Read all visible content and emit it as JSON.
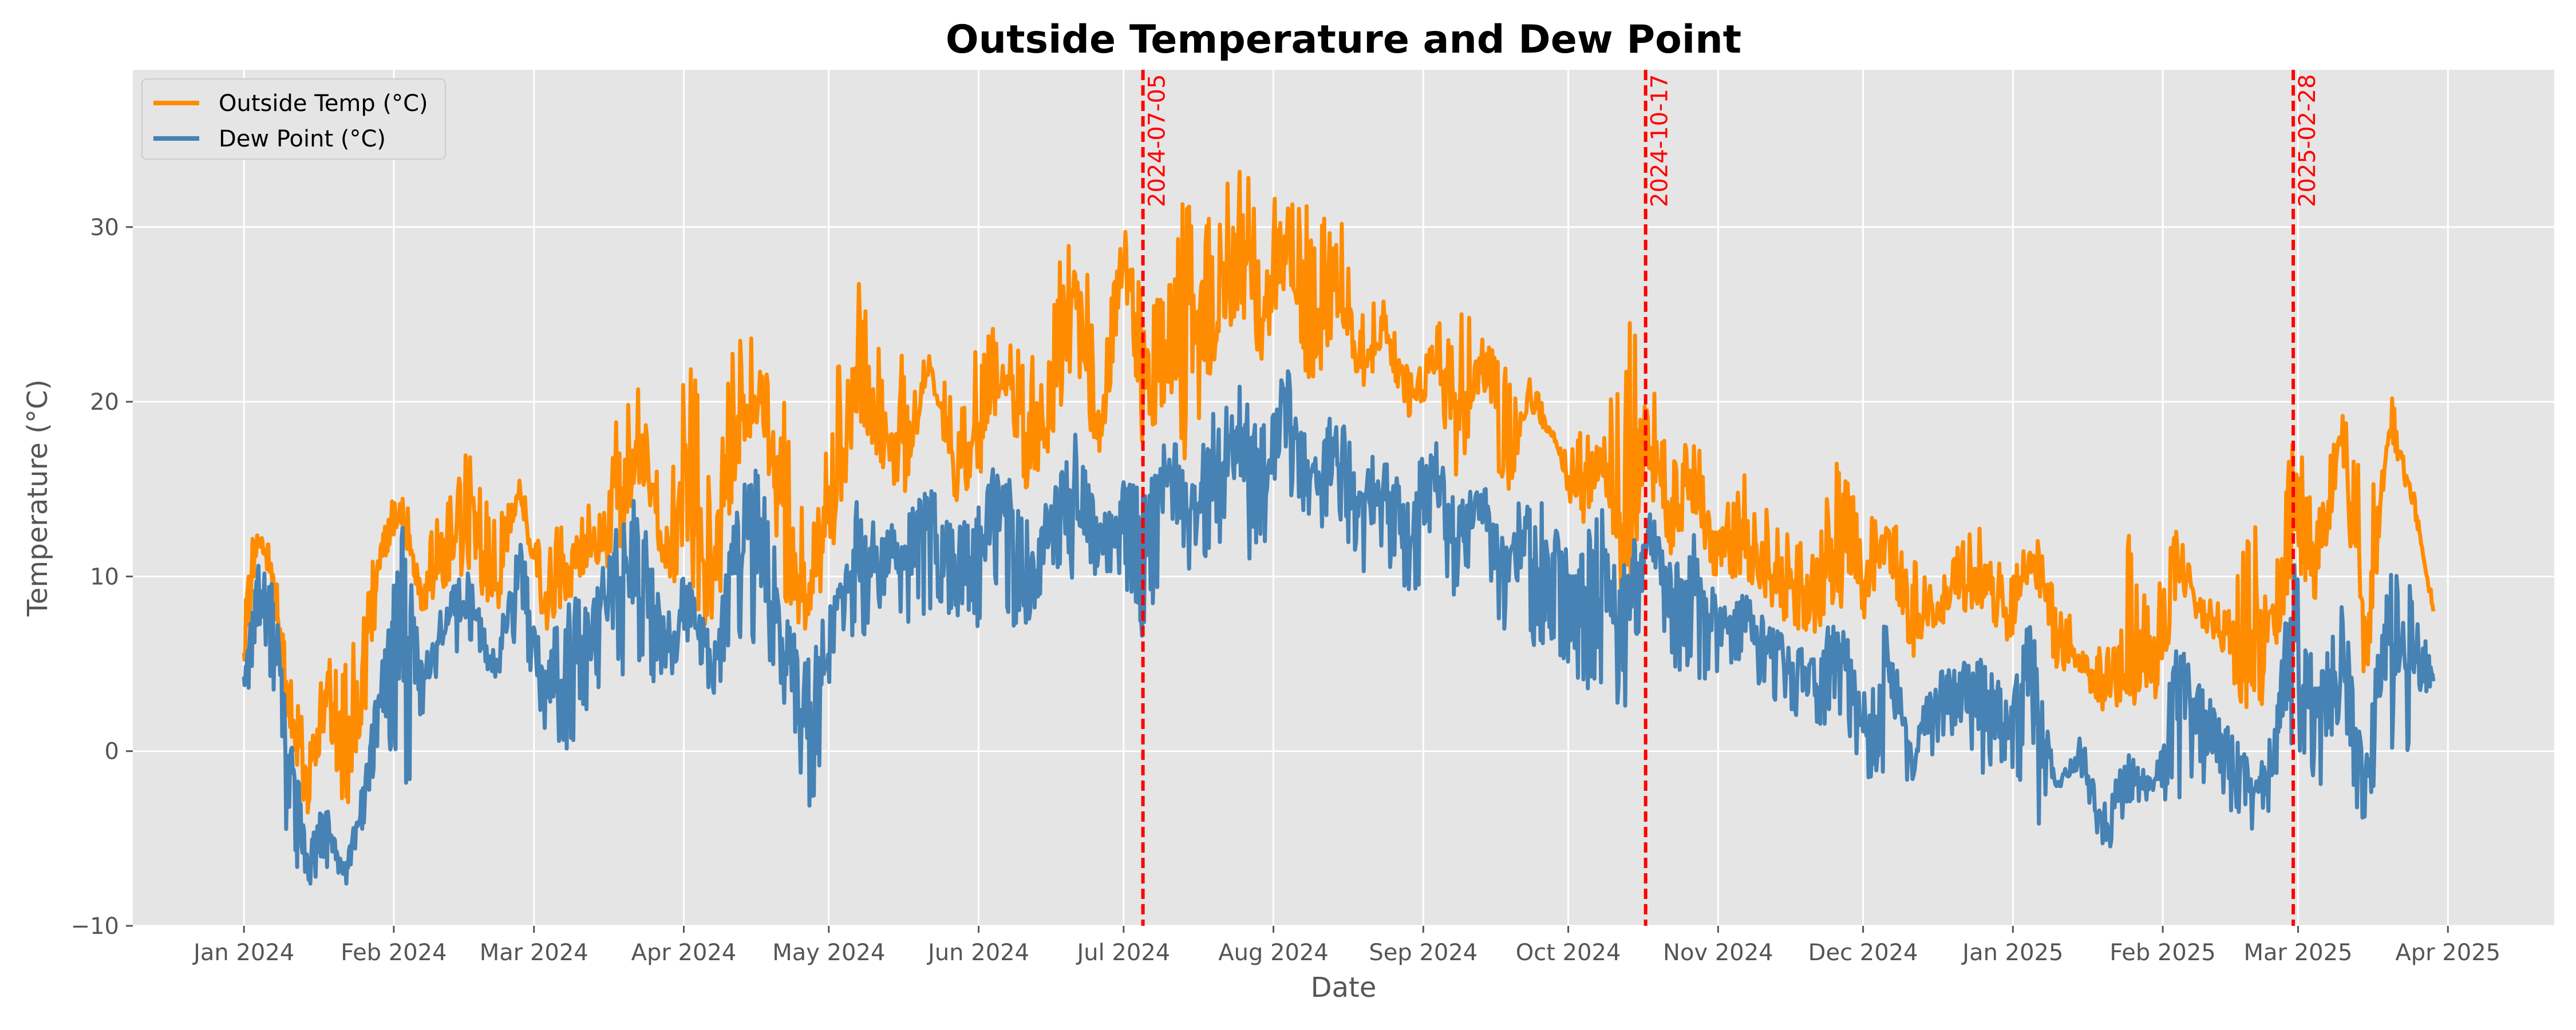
{
  "chart_data": {
    "type": "line",
    "title": "Outside Temperature and Dew Point",
    "xlabel": "Date",
    "ylabel": "Temperature (°C)",
    "xlim": [
      "2023-12-09",
      "2025-04-23"
    ],
    "ylim": [
      -10,
      39
    ],
    "x_ticks": [
      "2024-01-01",
      "2024-02-01",
      "2024-03-01",
      "2024-04-01",
      "2024-05-01",
      "2024-06-01",
      "2024-07-01",
      "2024-08-01",
      "2024-09-01",
      "2024-10-01",
      "2024-11-01",
      "2024-12-01",
      "2025-01-01",
      "2025-02-01",
      "2025-03-01",
      "2025-04-01"
    ],
    "x_tick_labels": [
      "Jan 2024",
      "Feb 2024",
      "Mar 2024",
      "Apr 2024",
      "May 2024",
      "Jun 2024",
      "Jul 2024",
      "Aug 2024",
      "Sep 2024",
      "Oct 2024",
      "Nov 2024",
      "Dec 2024",
      "Jan 2025",
      "Feb 2025",
      "Mar 2025",
      "Apr 2025"
    ],
    "y_ticks": [
      -10,
      0,
      10,
      20,
      30
    ],
    "y_tick_labels": [
      "−10",
      "0",
      "10",
      "20",
      "30"
    ],
    "grid": true,
    "legend": "top-left",
    "series": [
      {
        "name": "Outside Temp (°C)",
        "color": "#ff8c00",
        "x": [
          "2024-01-01",
          "2024-01-04",
          "2024-01-07",
          "2024-01-10",
          "2024-01-14",
          "2024-01-18",
          "2024-01-22",
          "2024-01-26",
          "2024-01-30",
          "2024-02-03",
          "2024-02-07",
          "2024-02-12",
          "2024-02-17",
          "2024-02-22",
          "2024-02-27",
          "2024-03-03",
          "2024-03-08",
          "2024-03-13",
          "2024-03-18",
          "2024-03-23",
          "2024-03-28",
          "2024-04-02",
          "2024-04-07",
          "2024-04-12",
          "2024-04-17",
          "2024-04-22",
          "2024-04-27",
          "2024-05-02",
          "2024-05-07",
          "2024-05-12",
          "2024-05-17",
          "2024-05-22",
          "2024-05-27",
          "2024-06-01",
          "2024-06-06",
          "2024-06-11",
          "2024-06-16",
          "2024-06-21",
          "2024-06-26",
          "2024-07-01",
          "2024-07-05",
          "2024-07-10",
          "2024-07-15",
          "2024-07-20",
          "2024-07-25",
          "2024-07-30",
          "2024-08-04",
          "2024-08-09",
          "2024-08-14",
          "2024-08-19",
          "2024-08-24",
          "2024-08-29",
          "2024-09-03",
          "2024-09-08",
          "2024-09-13",
          "2024-09-18",
          "2024-09-23",
          "2024-09-28",
          "2024-10-03",
          "2024-10-08",
          "2024-10-13",
          "2024-10-17",
          "2024-10-22",
          "2024-10-27",
          "2024-11-01",
          "2024-11-06",
          "2024-11-11",
          "2024-11-16",
          "2024-11-21",
          "2024-11-26",
          "2024-12-01",
          "2024-12-06",
          "2024-12-11",
          "2024-12-16",
          "2024-12-21",
          "2024-12-26",
          "2024-12-31",
          "2025-01-05",
          "2025-01-10",
          "2025-01-15",
          "2025-01-20",
          "2025-01-25",
          "2025-01-30",
          "2025-02-04",
          "2025-02-09",
          "2025-02-14",
          "2025-02-19",
          "2025-02-24",
          "2025-02-28",
          "2025-03-05",
          "2025-03-10",
          "2025-03-15",
          "2025-03-20",
          "2025-03-25",
          "2025-03-29"
        ],
        "y": [
          7,
          12,
          10,
          2,
          -2,
          3,
          -1,
          4,
          12,
          13,
          9,
          11,
          13,
          9,
          15,
          8,
          10,
          12,
          13,
          17,
          11,
          14,
          9,
          19,
          20,
          12,
          8,
          15,
          21,
          18,
          17,
          22,
          16,
          18,
          22,
          17,
          20,
          25,
          18,
          28,
          20,
          22,
          21,
          25,
          28,
          24,
          30,
          23,
          27,
          22,
          24,
          20,
          22,
          18,
          22,
          16,
          20,
          18,
          14,
          17,
          13,
          18,
          13,
          15,
          11,
          12,
          10,
          9,
          8,
          11,
          9,
          12,
          7,
          8,
          9,
          10,
          7,
          11,
          6,
          5,
          3,
          6,
          4,
          10,
          8,
          6,
          5,
          7,
          13,
          10,
          18,
          6,
          19,
          14,
          8
        ],
        "max": [
          12.5,
          12.7,
          11.5,
          5,
          2,
          5.8,
          5,
          9,
          14.5,
          14.5,
          12,
          14.2,
          18.7,
          13,
          15.5,
          11.5,
          14,
          14.5,
          19,
          21,
          14,
          24.3,
          15.5,
          26.3,
          22,
          20.3,
          12,
          23,
          27,
          22.5,
          23,
          22.8,
          20,
          23.5,
          25,
          22,
          26,
          32.7,
          22,
          30.5,
          26.2,
          26,
          34.5,
          30,
          36.4,
          28,
          36.9,
          30,
          32.3,
          25,
          27,
          22,
          25,
          25.8,
          24,
          22,
          18.5,
          17,
          18.5,
          19,
          26,
          23,
          17,
          18,
          15,
          16,
          14,
          13,
          12,
          17.6,
          13,
          14.2,
          11,
          10,
          12,
          13.8,
          10,
          13,
          9,
          7,
          6,
          13,
          9,
          12.9,
          10,
          8,
          16,
          11,
          18.5,
          14,
          19.6,
          16,
          17,
          13,
          9
        ]
      },
      {
        "name": "Dew Point (°C)",
        "color": "#4682b4",
        "x": [
          "2024-01-01",
          "2024-01-04",
          "2024-01-07",
          "2024-01-10",
          "2024-01-14",
          "2024-01-18",
          "2024-01-22",
          "2024-01-26",
          "2024-01-30",
          "2024-02-03",
          "2024-02-07",
          "2024-02-12",
          "2024-02-17",
          "2024-02-22",
          "2024-02-27",
          "2024-03-03",
          "2024-03-08",
          "2024-03-13",
          "2024-03-18",
          "2024-03-23",
          "2024-03-28",
          "2024-04-02",
          "2024-04-07",
          "2024-04-12",
          "2024-04-17",
          "2024-04-22",
          "2024-04-27",
          "2024-05-02",
          "2024-05-07",
          "2024-05-12",
          "2024-05-17",
          "2024-05-22",
          "2024-05-27",
          "2024-06-01",
          "2024-06-06",
          "2024-06-11",
          "2024-06-16",
          "2024-06-21",
          "2024-06-26",
          "2024-07-01",
          "2024-07-05",
          "2024-07-10",
          "2024-07-15",
          "2024-07-20",
          "2024-07-25",
          "2024-07-30",
          "2024-08-04",
          "2024-08-09",
          "2024-08-14",
          "2024-08-19",
          "2024-08-24",
          "2024-08-29",
          "2024-09-03",
          "2024-09-08",
          "2024-09-13",
          "2024-09-18",
          "2024-09-23",
          "2024-09-28",
          "2024-10-03",
          "2024-10-08",
          "2024-10-13",
          "2024-10-17",
          "2024-10-22",
          "2024-10-27",
          "2024-11-01",
          "2024-11-06",
          "2024-11-11",
          "2024-11-16",
          "2024-11-21",
          "2024-11-26",
          "2024-12-01",
          "2024-12-06",
          "2024-12-11",
          "2024-12-16",
          "2024-12-21",
          "2024-12-26",
          "2024-12-31",
          "2025-01-05",
          "2025-01-10",
          "2025-01-15",
          "2025-01-20",
          "2025-01-25",
          "2025-01-30",
          "2025-02-04",
          "2025-02-09",
          "2025-02-14",
          "2025-02-19",
          "2025-02-24",
          "2025-02-28",
          "2025-03-05",
          "2025-03-10",
          "2025-03-15",
          "2025-03-20",
          "2025-03-25",
          "2025-03-29"
        ],
        "y": [
          4,
          9,
          8,
          0,
          -6,
          -4,
          -7,
          -2,
          5,
          8,
          4,
          8,
          9,
          5,
          11,
          4,
          6,
          7,
          10,
          12,
          6,
          9,
          5,
          12,
          13,
          6,
          2,
          8,
          12,
          11,
          12,
          13,
          11,
          12,
          15,
          11,
          13,
          16,
          12,
          14,
          12,
          16,
          14,
          17,
          18,
          16,
          20,
          15,
          18,
          14,
          16,
          13,
          16,
          12,
          15,
          10,
          13,
          11,
          9,
          12,
          8,
          13,
          9,
          10,
          7,
          8,
          6,
          5,
          4,
          7,
          2,
          5,
          0,
          3,
          4,
          3,
          2,
          4,
          -2,
          0,
          -4,
          -1,
          -2,
          4,
          2,
          0,
          -2,
          0,
          8,
          2,
          5,
          -1,
          8,
          6,
          4
        ],
        "min": [
          2.7,
          5,
          4,
          -7,
          -7.8,
          -6.7,
          -7.8,
          -4,
          2,
          -4,
          2,
          5,
          6,
          4,
          6,
          1,
          -1,
          3,
          4,
          5,
          3,
          5,
          3,
          6,
          5,
          2,
          -5.2,
          5,
          6,
          8,
          7,
          8,
          7,
          7,
          8,
          6,
          10,
          9,
          10,
          9,
          6,
          10,
          10,
          11,
          11,
          10,
          15,
          12,
          13,
          10,
          10,
          8,
          11,
          8,
          11,
          5,
          6,
          6,
          4,
          2.5,
          2.5,
          9,
          5,
          4,
          4,
          5,
          3,
          2,
          1,
          2,
          -2,
          -1,
          -2,
          0,
          1,
          -2,
          -1,
          -5,
          -2,
          -2,
          -6.8,
          -3,
          -3,
          -3,
          -2,
          -4,
          -5,
          -3,
          0,
          -2,
          -3,
          -4,
          0,
          -1,
          3
        ]
      }
    ],
    "vlines": [
      {
        "x": "2024-07-05",
        "label": "2024-07-05",
        "color": "#ff0000",
        "style": "dashed"
      },
      {
        "x": "2024-10-17",
        "label": "2024-10-17",
        "color": "#ff0000",
        "style": "dashed"
      },
      {
        "x": "2025-02-28",
        "label": "2025-02-28",
        "color": "#ff0000",
        "style": "dashed"
      }
    ]
  }
}
